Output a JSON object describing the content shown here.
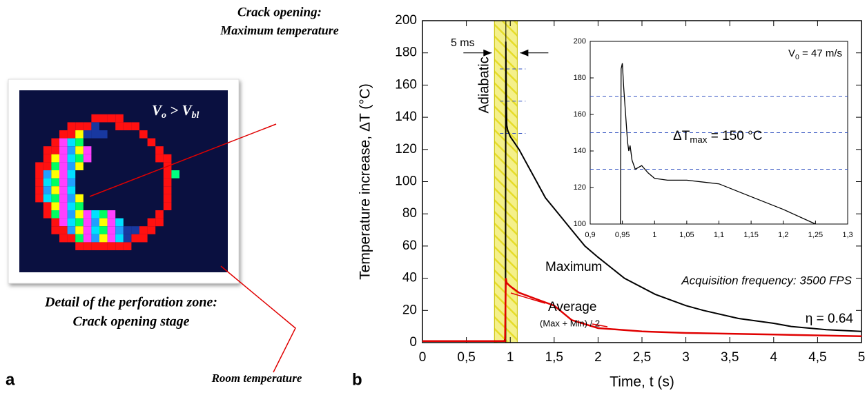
{
  "panel_a": {
    "letter": "a",
    "top_label": [
      "Crack opening:",
      "Maximum temperature"
    ],
    "image_label": [
      "V",
      "o",
      " > V",
      "bl"
    ],
    "caption": [
      "Detail of the perforation zone:",
      "Crack opening stage"
    ],
    "bottom_label": "Room temperature"
  },
  "chart_data": [
    {
      "type": "line",
      "letter": "b",
      "x_label": "Time, t (s)",
      "y_label": "Temperature increase, ΔT (°C)",
      "xlim": [
        0,
        5
      ],
      "ylim": [
        0,
        200
      ],
      "xticks": [
        0,
        {
          "value": 0.5,
          "label": "0,5"
        },
        1,
        {
          "value": 1.5,
          "label": "1,5"
        },
        2,
        {
          "value": 2.5,
          "label": "2,5"
        },
        3,
        {
          "value": 3.5,
          "label": "3,5"
        },
        4,
        {
          "value": 4.5,
          "label": "4,5"
        },
        5
      ],
      "yticks": [
        0,
        20,
        40,
        60,
        80,
        100,
        120,
        140,
        160,
        180,
        200
      ],
      "band": [
        0.82,
        1.08
      ],
      "band_label": "Adiabatic",
      "marker_x": 0.95,
      "ref_lines": [
        170,
        150,
        130
      ],
      "arrow_label": "5 ms",
      "frequency_label": "Acquisition frequency: 3500 FPS",
      "average_note": "(Max + Min) / 2",
      "eta_label": "η = 0.64",
      "series": [
        {
          "name": "Maximum",
          "color": "#000000",
          "x": [
            0,
            0.3,
            0.6,
            0.9,
            0.93,
            0.945,
            0.95,
            0.955,
            0.96,
            0.97,
            1.0,
            1.05,
            1.1,
            1.2,
            1.3,
            1.4,
            1.55,
            1.7,
            1.85,
            2.0,
            2.3,
            2.65,
            3.0,
            3.2,
            3.6,
            4.0,
            4.2,
            4.6,
            5.0
          ],
          "values": [
            1,
            1,
            1,
            1,
            1,
            3,
            187,
            150,
            135,
            132,
            128,
            124,
            120,
            110,
            100,
            90,
            80,
            70,
            60,
            53,
            40,
            30,
            23,
            20,
            15,
            12,
            10,
            8,
            7
          ]
        },
        {
          "name": "Average",
          "color": "#e00000",
          "x": [
            0,
            0.5,
            0.94,
            0.95,
            0.96,
            1.0,
            1.1,
            1.3,
            1.5,
            1.7,
            2.0,
            2.5,
            3.0,
            4.0,
            5.0
          ],
          "values": [
            1,
            1,
            1,
            40,
            37,
            35,
            31,
            27,
            23,
            14,
            9,
            7,
            6,
            5,
            4
          ]
        }
      ]
    },
    {
      "type": "line",
      "xlim": [
        0.9,
        1.3
      ],
      "ylim": [
        100,
        200
      ],
      "xticks": [
        {
          "value": 0.9,
          "label": "0,9"
        },
        {
          "value": 0.95,
          "label": "0,95"
        },
        1,
        {
          "value": 1.05,
          "label": "1,05"
        },
        {
          "value": 1.1,
          "label": "1,1"
        },
        {
          "value": 1.15,
          "label": "1,15"
        },
        {
          "value": 1.2,
          "label": "1,2"
        },
        {
          "value": 1.25,
          "label": "1,25"
        },
        {
          "value": 1.3,
          "label": "1,3"
        }
      ],
      "yticks": [
        100,
        120,
        140,
        160,
        180,
        200
      ],
      "ref_lines": [
        170,
        150,
        130
      ],
      "v0_label": [
        "V",
        "0",
        " = 47 m/s"
      ],
      "dtmax_label": [
        "ΔT",
        "max",
        " = 150 °C"
      ],
      "series": [
        {
          "color": "#000000",
          "x": [
            0.947,
            0.948,
            0.95,
            0.952,
            0.955,
            0.958,
            0.96,
            0.962,
            0.965,
            0.97,
            0.98,
            0.99,
            1.0,
            1.02,
            1.05,
            1.1,
            1.15,
            1.2,
            1.25
          ],
          "values": [
            100,
            185,
            188,
            175,
            160,
            145,
            140,
            143,
            135,
            130,
            132,
            128,
            125,
            124,
            124,
            122,
            115,
            108,
            100
          ]
        }
      ]
    }
  ]
}
